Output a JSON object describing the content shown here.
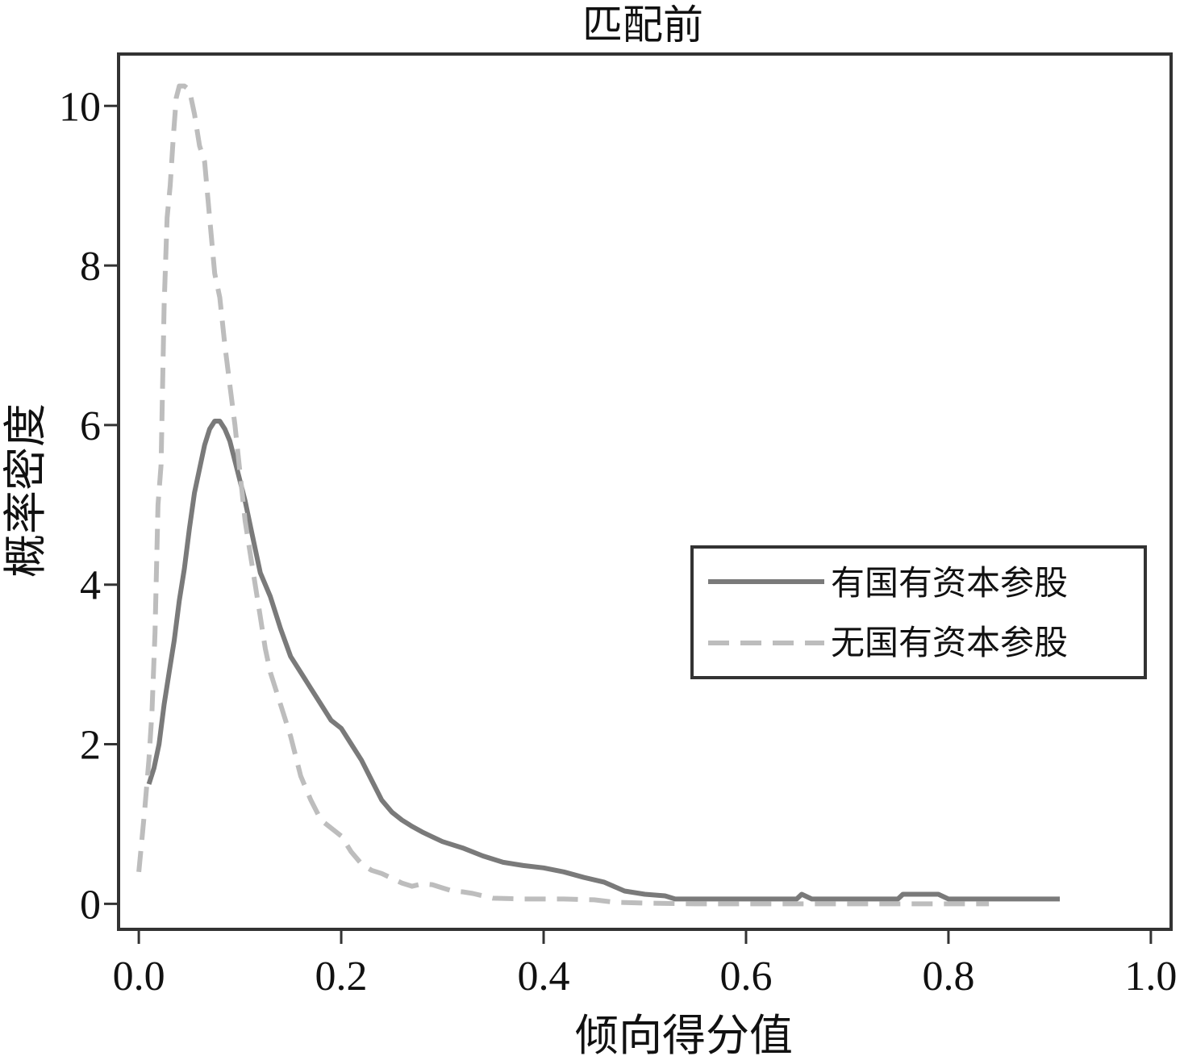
{
  "chart_data": {
    "type": "line",
    "title": "匹配前",
    "xlabel": "倾向得分值",
    "ylabel": "概率密度",
    "xlim": [
      -0.02,
      1.02
    ],
    "ylim": [
      -0.32,
      10.65
    ],
    "x_ticks": [
      0.0,
      0.2,
      0.4,
      0.6,
      0.8,
      1.0
    ],
    "x_tick_labels": [
      "0.0",
      "0.2",
      "0.4",
      "0.6",
      "0.8",
      "1.0"
    ],
    "y_ticks": [
      0,
      2,
      4,
      6,
      8,
      10
    ],
    "y_tick_labels": [
      "0",
      "2",
      "4",
      "6",
      "8",
      "10"
    ],
    "grid": false,
    "legend_position": "right",
    "series": [
      {
        "name": "有国有资本参股",
        "style": "solid",
        "color": "#7a7a7a",
        "points": [
          [
            0.01,
            1.5
          ],
          [
            0.015,
            1.7
          ],
          [
            0.02,
            2.0
          ],
          [
            0.025,
            2.5
          ],
          [
            0.03,
            2.9
          ],
          [
            0.035,
            3.3
          ],
          [
            0.04,
            3.8
          ],
          [
            0.045,
            4.2
          ],
          [
            0.05,
            4.7
          ],
          [
            0.055,
            5.15
          ],
          [
            0.06,
            5.45
          ],
          [
            0.065,
            5.75
          ],
          [
            0.07,
            5.95
          ],
          [
            0.075,
            6.05
          ],
          [
            0.08,
            6.05
          ],
          [
            0.085,
            5.95
          ],
          [
            0.09,
            5.8
          ],
          [
            0.095,
            5.55
          ],
          [
            0.1,
            5.3
          ],
          [
            0.105,
            5.05
          ],
          [
            0.11,
            4.75
          ],
          [
            0.115,
            4.45
          ],
          [
            0.12,
            4.15
          ],
          [
            0.13,
            3.85
          ],
          [
            0.14,
            3.45
          ],
          [
            0.15,
            3.1
          ],
          [
            0.16,
            2.9
          ],
          [
            0.17,
            2.7
          ],
          [
            0.18,
            2.5
          ],
          [
            0.19,
            2.3
          ],
          [
            0.2,
            2.2
          ],
          [
            0.21,
            2.0
          ],
          [
            0.22,
            1.8
          ],
          [
            0.23,
            1.55
          ],
          [
            0.24,
            1.3
          ],
          [
            0.25,
            1.15
          ],
          [
            0.26,
            1.05
          ],
          [
            0.27,
            0.97
          ],
          [
            0.28,
            0.9
          ],
          [
            0.29,
            0.84
          ],
          [
            0.3,
            0.78
          ],
          [
            0.32,
            0.7
          ],
          [
            0.34,
            0.6
          ],
          [
            0.36,
            0.52
          ],
          [
            0.38,
            0.48
          ],
          [
            0.4,
            0.45
          ],
          [
            0.42,
            0.4
          ],
          [
            0.44,
            0.33
          ],
          [
            0.46,
            0.27
          ],
          [
            0.48,
            0.16
          ],
          [
            0.5,
            0.12
          ],
          [
            0.52,
            0.1
          ],
          [
            0.53,
            0.06
          ],
          [
            0.56,
            0.06
          ],
          [
            0.6,
            0.06
          ],
          [
            0.65,
            0.06
          ],
          [
            0.655,
            0.12
          ],
          [
            0.665,
            0.06
          ],
          [
            0.7,
            0.06
          ],
          [
            0.75,
            0.06
          ],
          [
            0.755,
            0.12
          ],
          [
            0.79,
            0.12
          ],
          [
            0.8,
            0.06
          ],
          [
            0.85,
            0.06
          ],
          [
            0.91,
            0.06
          ]
        ]
      },
      {
        "name": "无国有资本参股",
        "style": "dashed",
        "color": "#bdbdbd",
        "points": [
          [
            0.0,
            0.4
          ],
          [
            0.003,
            0.8
          ],
          [
            0.006,
            1.2
          ],
          [
            0.01,
            1.8
          ],
          [
            0.013,
            2.4
          ],
          [
            0.016,
            3.4
          ],
          [
            0.019,
            5.0
          ],
          [
            0.022,
            5.5
          ],
          [
            0.025,
            7.5
          ],
          [
            0.028,
            8.6
          ],
          [
            0.031,
            9.0
          ],
          [
            0.034,
            9.6
          ],
          [
            0.037,
            10.1
          ],
          [
            0.04,
            10.25
          ],
          [
            0.045,
            10.25
          ],
          [
            0.05,
            10.2
          ],
          [
            0.055,
            9.9
          ],
          [
            0.06,
            9.5
          ],
          [
            0.065,
            9.3
          ],
          [
            0.07,
            8.6
          ],
          [
            0.075,
            7.9
          ],
          [
            0.08,
            7.6
          ],
          [
            0.085,
            7.0
          ],
          [
            0.09,
            6.5
          ],
          [
            0.095,
            6.0
          ],
          [
            0.1,
            5.4
          ],
          [
            0.105,
            4.8
          ],
          [
            0.11,
            4.4
          ],
          [
            0.115,
            4.0
          ],
          [
            0.12,
            3.6
          ],
          [
            0.125,
            3.2
          ],
          [
            0.13,
            2.9
          ],
          [
            0.14,
            2.5
          ],
          [
            0.15,
            2.1
          ],
          [
            0.16,
            1.6
          ],
          [
            0.17,
            1.3
          ],
          [
            0.18,
            1.05
          ],
          [
            0.19,
            0.95
          ],
          [
            0.2,
            0.85
          ],
          [
            0.21,
            0.65
          ],
          [
            0.22,
            0.5
          ],
          [
            0.23,
            0.42
          ],
          [
            0.24,
            0.38
          ],
          [
            0.25,
            0.32
          ],
          [
            0.26,
            0.26
          ],
          [
            0.27,
            0.22
          ],
          [
            0.28,
            0.25
          ],
          [
            0.29,
            0.24
          ],
          [
            0.3,
            0.2
          ],
          [
            0.31,
            0.16
          ],
          [
            0.32,
            0.15
          ],
          [
            0.33,
            0.13
          ],
          [
            0.34,
            0.1
          ],
          [
            0.35,
            0.07
          ],
          [
            0.38,
            0.06
          ],
          [
            0.42,
            0.06
          ],
          [
            0.45,
            0.05
          ],
          [
            0.47,
            0.02
          ],
          [
            0.5,
            0.01
          ],
          [
            0.55,
            0.0
          ],
          [
            0.6,
            0.0
          ],
          [
            0.7,
            0.0
          ],
          [
            0.8,
            0.0
          ],
          [
            0.84,
            0.0
          ]
        ]
      }
    ]
  }
}
